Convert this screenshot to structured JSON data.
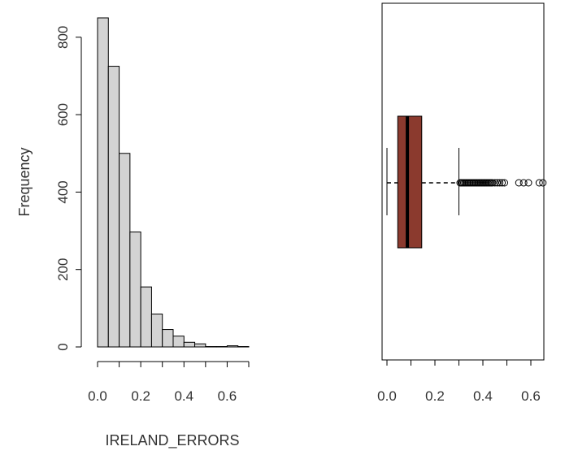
{
  "chart_data": [
    {
      "type": "bar",
      "title": "",
      "xlabel": "IRELAND_ERRORS",
      "ylabel": "Frequency",
      "bin_width": 0.05,
      "bin_starts": [
        0.0,
        0.05,
        0.1,
        0.15,
        0.2,
        0.25,
        0.3,
        0.35,
        0.4,
        0.45,
        0.5,
        0.55,
        0.6,
        0.65
      ],
      "values": [
        850,
        725,
        500,
        297,
        155,
        85,
        45,
        28,
        12,
        8,
        1,
        1,
        3,
        1
      ],
      "xlim": [
        0.0,
        0.7
      ],
      "ylim": [
        0,
        850
      ],
      "x_ticks": [
        0.0,
        0.1,
        0.2,
        0.3,
        0.4,
        0.5,
        0.6,
        0.7
      ],
      "x_tick_labels": [
        "0.0",
        "0.2",
        "0.4",
        "0.6"
      ],
      "y_ticks": [
        0,
        200,
        400,
        600,
        800
      ],
      "y_tick_labels": [
        "0",
        "200",
        "400",
        "600",
        "800"
      ],
      "bar_color": "#d3d3d3",
      "grid": false
    },
    {
      "type": "boxplot",
      "orientation": "horizontal",
      "min_whisker": 0.0,
      "q1": 0.045,
      "median": 0.085,
      "q3": 0.145,
      "max_whisker": 0.3,
      "outliers": [
        0.305,
        0.31,
        0.315,
        0.32,
        0.325,
        0.33,
        0.335,
        0.34,
        0.345,
        0.35,
        0.355,
        0.36,
        0.365,
        0.37,
        0.375,
        0.38,
        0.385,
        0.39,
        0.395,
        0.4,
        0.405,
        0.41,
        0.415,
        0.42,
        0.425,
        0.43,
        0.435,
        0.44,
        0.45,
        0.46,
        0.47,
        0.48,
        0.49,
        0.55,
        0.57,
        0.59,
        0.635,
        0.65
      ],
      "xlim": [
        -0.02,
        0.68
      ],
      "x_ticks": [
        0.0,
        0.1,
        0.2,
        0.3,
        0.4,
        0.5,
        0.6
      ],
      "x_tick_labels": [
        "0.0",
        "0.2",
        "0.4",
        "0.6"
      ],
      "box_color": "#8b3a2e",
      "grid": false
    }
  ]
}
